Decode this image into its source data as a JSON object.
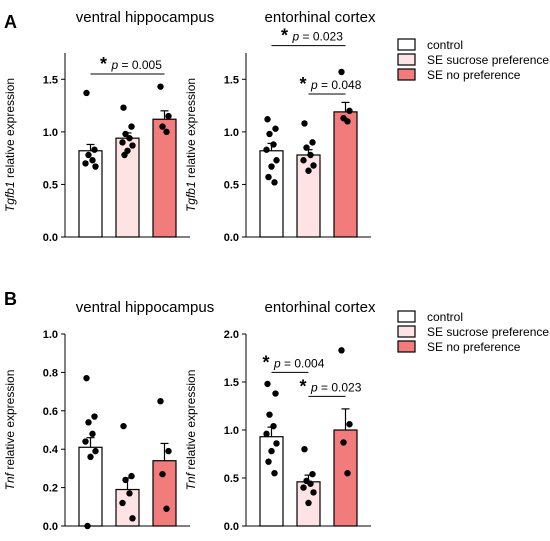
{
  "figure": {
    "panel_labels": [
      "A",
      "B"
    ]
  },
  "legend": {
    "entries": [
      "control",
      "SE sucrose preference",
      "SE no preference"
    ]
  },
  "colors": {
    "control": "#ffffff",
    "sucrose": "#fde3e3",
    "nopref": "#f27b7b",
    "bar_stroke": "#000000",
    "axis": "#000000",
    "point": "#000000"
  },
  "chart_data": [
    {
      "type": "bar",
      "panel": "A",
      "title": "ventral hippocampus",
      "ylabel_gene": "Tgfb1",
      "ylabel_rest": " relative expression",
      "ylim": [
        0,
        1.75
      ],
      "yticks": [
        "0.0",
        "0.5",
        "1.0",
        "1.5"
      ],
      "ytick_values": [
        0,
        0.5,
        1.0,
        1.5
      ],
      "categories": [
        "control",
        "SE sucrose preference",
        "SE no preference"
      ],
      "values": [
        0.82,
        0.94,
        1.12
      ],
      "errors": [
        0.06,
        0.05,
        0.08
      ],
      "points": [
        [
          1.37,
          0.83,
          0.78,
          0.73,
          0.7,
          0.67
        ],
        [
          1.23,
          1.05,
          0.98,
          0.94,
          0.9,
          0.87,
          0.82,
          0.78
        ],
        [
          1.43,
          1.15,
          1.05,
          1.0
        ]
      ],
      "annotations": [
        {
          "from": 0,
          "to": 2,
          "y": 1.55,
          "star": "*",
          "text": "p = 0.005"
        }
      ]
    },
    {
      "type": "bar",
      "panel": "A",
      "title": "entorhinal cortex",
      "ylabel_gene": "Tgfb1",
      "ylabel_rest": " relative expression",
      "ylim": [
        0,
        1.75
      ],
      "yticks": [
        "0.0",
        "0.5",
        "1.0",
        "1.5"
      ],
      "ytick_values": [
        0,
        0.5,
        1.0,
        1.5
      ],
      "categories": [
        "control",
        "SE sucrose preference",
        "SE no preference"
      ],
      "values": [
        0.82,
        0.78,
        1.19
      ],
      "errors": [
        0.07,
        0.05,
        0.09
      ],
      "points": [
        [
          1.12,
          1.03,
          0.98,
          0.88,
          0.83,
          0.73,
          0.67,
          0.57,
          0.52
        ],
        [
          1.08,
          0.9,
          0.85,
          0.78,
          0.73,
          0.68,
          0.63
        ],
        [
          1.57,
          1.2,
          1.13,
          1.1
        ]
      ],
      "annotations": [
        {
          "from": 1,
          "to": 2,
          "y": 1.36,
          "star": "*",
          "text": "p = 0.048"
        },
        {
          "from": 0,
          "to": 2,
          "y": 1.82,
          "star": "*",
          "text": "p = 0.023"
        }
      ]
    },
    {
      "type": "bar",
      "panel": "B",
      "title": "ventral hippocampus",
      "ylabel_gene": "Tnf",
      "ylabel_rest": " relative expression",
      "ylim": [
        0,
        1.0
      ],
      "yticks": [
        "0.0",
        "0.2",
        "0.4",
        "0.6",
        "0.8",
        "1.0"
      ],
      "ytick_values": [
        0,
        0.2,
        0.4,
        0.6,
        0.8,
        1.0
      ],
      "categories": [
        "control",
        "SE sucrose preference",
        "SE no preference"
      ],
      "values": [
        0.41,
        0.19,
        0.34
      ],
      "errors": [
        0.05,
        0.06,
        0.09
      ],
      "points": [
        [
          0.77,
          0.57,
          0.54,
          0.48,
          0.44,
          0.39,
          0.36,
          0.0
        ],
        [
          0.52,
          0.26,
          0.24,
          0.17,
          0.12,
          0.04
        ],
        [
          0.65,
          0.39,
          0.27,
          0.09
        ]
      ],
      "annotations": []
    },
    {
      "type": "bar",
      "panel": "B",
      "title": "entorhinal cortex",
      "ylabel_gene": "Tnf",
      "ylabel_rest": " relative expression",
      "ylim": [
        0,
        2.0
      ],
      "yticks": [
        "0.0",
        "0.5",
        "1.0",
        "1.5",
        "2.0"
      ],
      "ytick_values": [
        0,
        0.5,
        1.0,
        1.5,
        2.0
      ],
      "categories": [
        "control",
        "SE sucrose preference",
        "SE no preference"
      ],
      "values": [
        0.93,
        0.46,
        1.0
      ],
      "errors": [
        0.1,
        0.07,
        0.22
      ],
      "points": [
        [
          1.48,
          1.38,
          1.16,
          1.04,
          0.96,
          0.86,
          0.78,
          0.67,
          0.55
        ],
        [
          0.8,
          0.54,
          0.47,
          0.44,
          0.4,
          0.35,
          0.24
        ],
        [
          1.83,
          1.06,
          0.87,
          0.55
        ]
      ],
      "annotations": [
        {
          "from": 0,
          "to": 1,
          "y": 1.6,
          "star": "*",
          "text": "p = 0.004"
        },
        {
          "from": 1,
          "to": 2,
          "y": 1.35,
          "star": "*",
          "text": "p = 0.023"
        }
      ]
    }
  ]
}
